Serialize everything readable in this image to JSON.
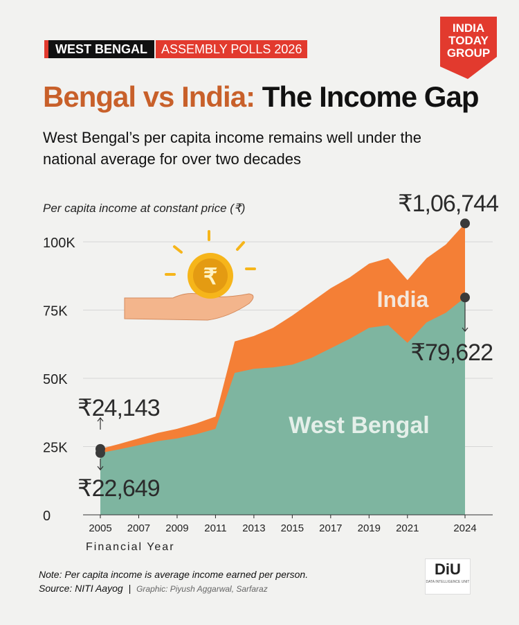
{
  "header": {
    "tag_primary": "WEST BENGAL",
    "tag_secondary": "ASSEMBLY POLLS 2026",
    "title_part1": "Bengal vs India:",
    "title_part2": "The Income Gap",
    "subtitle": "West Bengal’s per capita income remains well under the national average for over two decades",
    "unit_label": "Per capita income at constant price (₹)"
  },
  "logo": {
    "line1": "INDIA",
    "line2": "TODAY",
    "line3": "GROUP"
  },
  "footer": {
    "note": "Note: Per capita income is average income earned per person.",
    "source": "Source: NITI Aayog",
    "graphic": "Graphic: Piyush Aggarwal, Sarfaraz",
    "diu_mark": "DiU",
    "diu_sub": "DATA INTELLIGENCE UNIT"
  },
  "colors": {
    "india": "#f47f36",
    "west_bengal": "#7eb5a0",
    "accent_red": "#e23a2e",
    "title_orange": "#c8602a"
  },
  "chart_data": {
    "type": "area",
    "xlabel": "Financial Year",
    "ylabel": "",
    "ylim": [
      0,
      100000
    ],
    "yticks": [
      0,
      25000,
      50000,
      75000,
      100000
    ],
    "ytick_labels": [
      "0",
      "25K",
      "50K",
      "75K",
      "100K"
    ],
    "xtick_labels": [
      "2005",
      "2007",
      "2009",
      "2011",
      "2013",
      "2015",
      "2017",
      "2019",
      "2021",
      "2024"
    ],
    "x": [
      "2005",
      "2006",
      "2007",
      "2008",
      "2009",
      "2010",
      "2011",
      "2012",
      "2013",
      "2014",
      "2015",
      "2016",
      "2017",
      "2018",
      "2019",
      "2020",
      "2021",
      "2022",
      "2023",
      "2024"
    ],
    "series": [
      {
        "name": "India",
        "values": [
          24143,
          26000,
          28000,
          30000,
          31500,
          33500,
          36000,
          63500,
          65500,
          68500,
          73000,
          78000,
          83000,
          87000,
          92000,
          94000,
          86000,
          94000,
          99000,
          106744
        ]
      },
      {
        "name": "West Bengal",
        "values": [
          22649,
          24000,
          25500,
          27000,
          28000,
          29500,
          31500,
          52000,
          53500,
          54000,
          55000,
          57500,
          61000,
          64500,
          68500,
          69500,
          63000,
          70500,
          74000,
          79622
        ]
      }
    ],
    "annotations": [
      {
        "label": "₹24,143",
        "series": "India",
        "year": "2005",
        "value": 24143
      },
      {
        "label": "₹22,649",
        "series": "West Bengal",
        "year": "2005",
        "value": 22649
      },
      {
        "label": "₹1,06,744",
        "series": "India",
        "year": "2024",
        "value": 106744
      },
      {
        "label": "₹79,622",
        "series": "West Bengal",
        "year": "2024",
        "value": 79622
      }
    ],
    "grid": true
  }
}
